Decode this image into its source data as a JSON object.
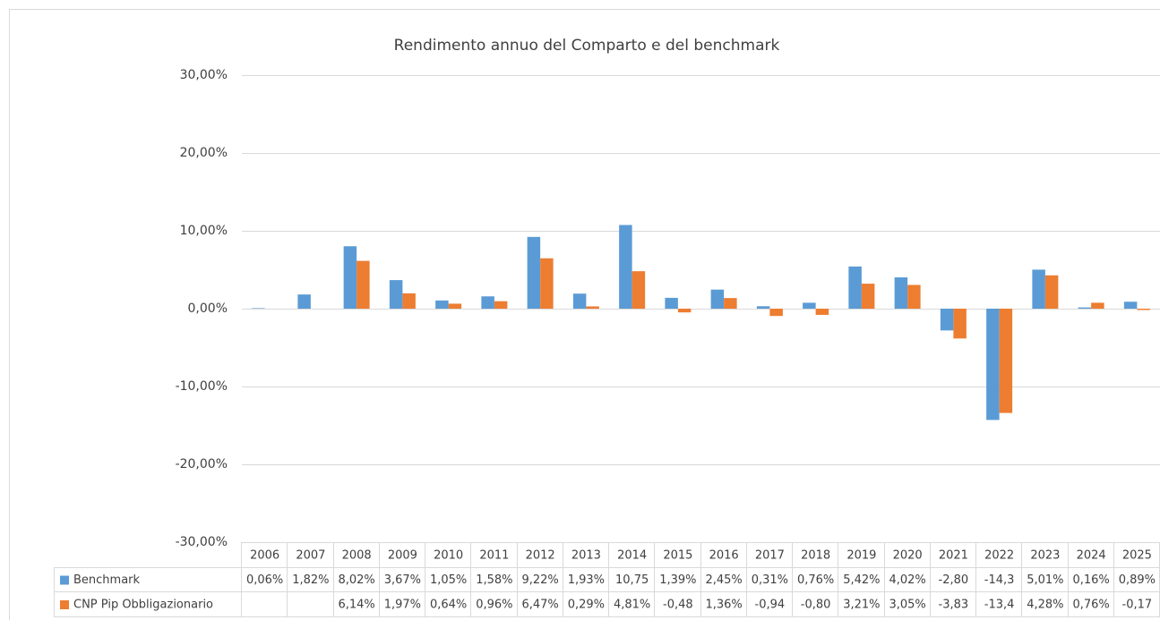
{
  "chart_data": {
    "type": "bar",
    "title": "Rendimento annuo del Comparto e del benchmark",
    "categories": [
      "2006",
      "2007",
      "2008",
      "2009",
      "2010",
      "2011",
      "2012",
      "2013",
      "2014",
      "2015",
      "2016",
      "2017",
      "2018",
      "2019",
      "2020",
      "2021",
      "2022",
      "2023",
      "2024",
      "2025"
    ],
    "series": [
      {
        "name": "Benchmark",
        "color": "#5b9bd5",
        "values": [
          0.06,
          1.82,
          8.02,
          3.67,
          1.05,
          1.58,
          9.22,
          1.93,
          10.75,
          1.39,
          2.45,
          0.31,
          0.76,
          5.42,
          4.02,
          -2.8,
          -14.3,
          5.01,
          0.16,
          0.89
        ],
        "value_labels": [
          "0,06%",
          "1,82%",
          "8,02%",
          "3,67%",
          "1,05%",
          "1,58%",
          "9,22%",
          "1,93%",
          "10,75",
          "1,39%",
          "2,45%",
          "0,31%",
          "0,76%",
          "5,42%",
          "4,02%",
          "-2,80",
          "-14,3",
          "5,01%",
          "0,16%",
          "0,89%"
        ]
      },
      {
        "name": "CNP Pip Obbligazionario",
        "color": "#ed7d31",
        "values": [
          null,
          null,
          6.14,
          1.97,
          0.64,
          0.96,
          6.47,
          0.29,
          4.81,
          -0.48,
          1.36,
          -0.94,
          -0.8,
          3.21,
          3.05,
          -3.83,
          -13.4,
          4.28,
          0.76,
          -0.17
        ],
        "value_labels": [
          null,
          null,
          "6,14%",
          "1,97%",
          "0,64%",
          "0,96%",
          "6,47%",
          "0,29%",
          "4,81%",
          "-0,48",
          "1,36%",
          "-0,94",
          "-0,80",
          "3,21%",
          "3,05%",
          "-3,83",
          "-13,4",
          "4,28%",
          "0,76%",
          "-0,17"
        ]
      }
    ],
    "ylim": [
      -30,
      30
    ],
    "yticks": [
      {
        "value": -30,
        "label": "-30,00%"
      },
      {
        "value": -20,
        "label": "-20,00%"
      },
      {
        "value": -10,
        "label": "-10,00%"
      },
      {
        "value": 0,
        "label": "0,00%"
      },
      {
        "value": 10,
        "label": "10,00%"
      },
      {
        "value": 20,
        "label": "20,00%"
      },
      {
        "value": 30,
        "label": "30,00%"
      }
    ],
    "grid": true
  }
}
